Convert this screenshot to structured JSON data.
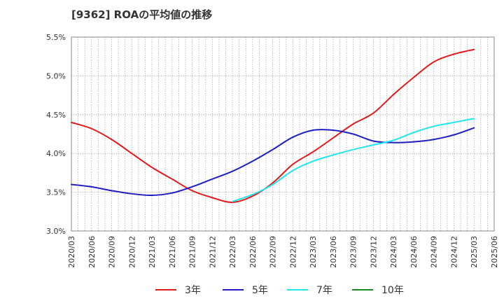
{
  "chart_data": {
    "type": "line",
    "title": "[9362]  ROAの平均値の推移",
    "xlabel": "",
    "ylabel": "",
    "ylim": [
      3.0,
      5.5
    ],
    "yticks": [
      "3.0%",
      "3.5%",
      "4.0%",
      "4.5%",
      "5.0%",
      "5.5%"
    ],
    "yticks_values": [
      3.0,
      3.5,
      4.0,
      4.5,
      5.0,
      5.5
    ],
    "categories": [
      "2020/03",
      "2020/06",
      "2020/09",
      "2020/12",
      "2021/03",
      "2021/06",
      "2021/09",
      "2021/12",
      "2022/03",
      "2022/06",
      "2022/09",
      "2022/12",
      "2023/03",
      "2023/06",
      "2023/09",
      "2023/12",
      "2024/03",
      "2024/06",
      "2024/09",
      "2024/12",
      "2025/03",
      "2025/06"
    ],
    "grid": true,
    "legend_position": "bottom",
    "series": [
      {
        "name": "3年",
        "color": "#e31a1c",
        "values": [
          4.4,
          4.32,
          4.18,
          4.0,
          3.82,
          3.67,
          3.52,
          3.43,
          3.37,
          3.45,
          3.62,
          3.86,
          4.02,
          4.2,
          4.38,
          4.52,
          4.76,
          4.98,
          5.18,
          5.28,
          5.34,
          null
        ]
      },
      {
        "name": "5年",
        "color": "#1f1fbf",
        "values": [
          3.6,
          3.57,
          3.52,
          3.48,
          3.46,
          3.49,
          3.57,
          3.67,
          3.77,
          3.9,
          4.05,
          4.21,
          4.3,
          4.3,
          4.25,
          4.16,
          4.14,
          4.15,
          4.18,
          4.24,
          4.33,
          null
        ]
      },
      {
        "name": "7年",
        "color": "#22e5ee",
        "values": [
          null,
          null,
          null,
          null,
          null,
          null,
          null,
          null,
          3.38,
          3.47,
          3.6,
          3.78,
          3.9,
          3.98,
          4.05,
          4.11,
          4.17,
          4.27,
          4.35,
          4.4,
          4.45,
          null
        ]
      },
      {
        "name": "10年",
        "color": "#1a8a1a",
        "values": [
          null,
          null,
          null,
          null,
          null,
          null,
          null,
          null,
          null,
          null,
          null,
          null,
          null,
          null,
          null,
          null,
          null,
          null,
          null,
          null,
          null,
          null
        ]
      }
    ]
  }
}
